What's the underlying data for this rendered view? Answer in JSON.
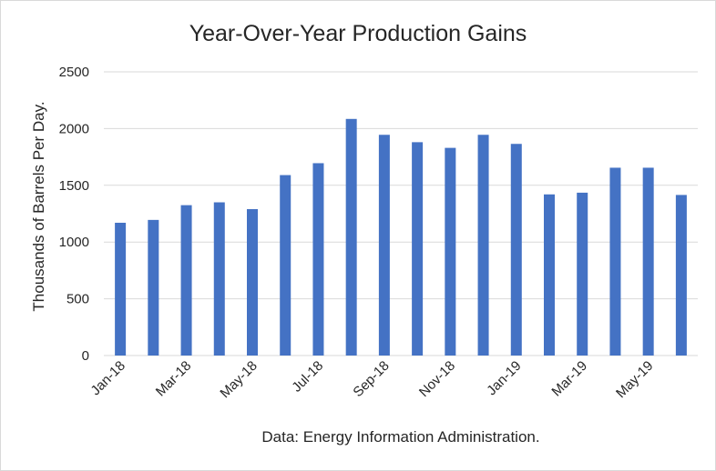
{
  "chart_data": {
    "type": "bar",
    "title": "Year-Over-Year Production Gains",
    "ylabel": "Thousands of Barrels Per Day.",
    "xlabel": "",
    "source": "Data: Energy Information Administration.",
    "categories": [
      "Jan-18",
      "Feb-18",
      "Mar-18",
      "Apr-18",
      "May-18",
      "Jun-18",
      "Jul-18",
      "Aug-18",
      "Sep-18",
      "Oct-18",
      "Nov-18",
      "Dec-18",
      "Jan-19",
      "Feb-19",
      "Mar-19",
      "Apr-19",
      "May-19",
      "Jun-19"
    ],
    "x_tick_labels": [
      "Jan-18",
      "",
      "Mar-18",
      "",
      "May-18",
      "",
      "Jul-18",
      "",
      "Sep-18",
      "",
      "Nov-18",
      "",
      "Jan-19",
      "",
      "Mar-19",
      "",
      "May-19",
      ""
    ],
    "values": [
      1170,
      1195,
      1325,
      1350,
      1290,
      1590,
      1695,
      2085,
      1945,
      1880,
      1830,
      1945,
      1865,
      1420,
      1435,
      1655,
      1655,
      1415
    ],
    "ylim": [
      0,
      2500
    ],
    "y_ticks": [
      0,
      500,
      1000,
      1500,
      2000,
      2500
    ],
    "grid": true,
    "legend": "none",
    "bar_color": "#4472C4",
    "grid_color": "#d9d9d9"
  }
}
